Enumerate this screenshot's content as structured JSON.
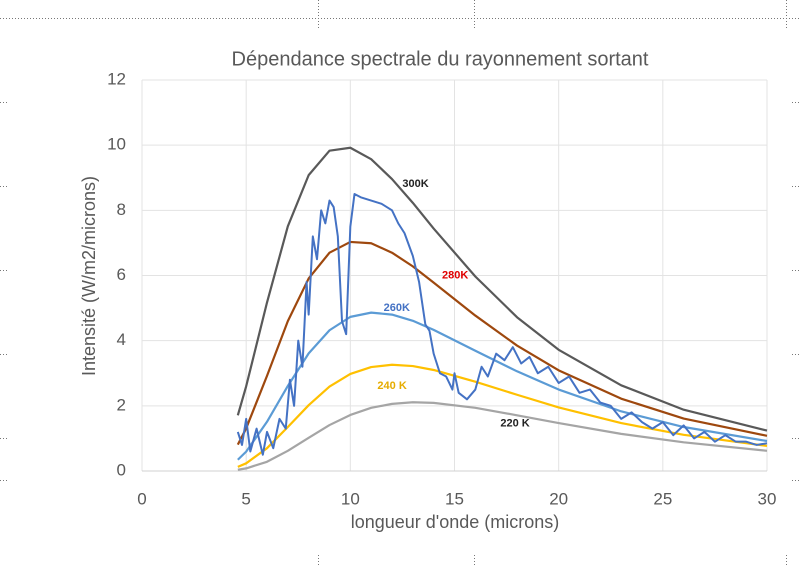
{
  "chart_data": {
    "type": "line",
    "title": "Dépendance spectrale du rayonnement sortant",
    "xlabel": "longueur d'onde (microns)",
    "ylabel": "Intensité (W/m2/microns)",
    "xlim": [
      0,
      30
    ],
    "xticks": [
      0,
      5,
      10,
      15,
      20,
      25,
      30
    ],
    "ylim": [
      0,
      12
    ],
    "yticks": [
      0,
      2,
      4,
      6,
      8,
      10,
      12
    ],
    "grid": true,
    "x": [
      4.6,
      5,
      6,
      7,
      8,
      9,
      10,
      11,
      12,
      13,
      14,
      16,
      18,
      20,
      23,
      26,
      30
    ],
    "series": [
      {
        "name": "300K",
        "color": "#595959",
        "values": [
          1.71,
          2.6,
          5.17,
          7.51,
          9.08,
          9.83,
          9.92,
          9.57,
          8.96,
          8.23,
          7.44,
          5.97,
          4.72,
          3.72,
          2.63,
          1.88,
          1.24
        ]
      },
      {
        "name": "280K",
        "color": "#9e480e",
        "values": [
          0.81,
          1.31,
          2.92,
          4.6,
          5.91,
          6.7,
          7.03,
          6.99,
          6.7,
          6.28,
          5.78,
          4.77,
          3.85,
          3.09,
          2.22,
          1.61,
          1.08
        ]
      },
      {
        "name": "260K",
        "color": "#5b9bd5",
        "values": [
          0.345,
          0.595,
          1.51,
          2.61,
          3.61,
          4.32,
          4.73,
          4.86,
          4.8,
          4.61,
          4.33,
          3.69,
          3.06,
          2.5,
          1.83,
          1.35,
          0.92
        ]
      },
      {
        "name": "240 K",
        "color": "#ffc000",
        "values": [
          0.127,
          0.236,
          0.7,
          1.35,
          2.02,
          2.59,
          2.98,
          3.19,
          3.26,
          3.22,
          3.1,
          2.74,
          2.34,
          1.95,
          1.47,
          1.11,
          0.77
        ]
      },
      {
        "name": "220 K",
        "color": "#a5a5a5",
        "values": [
          0.039,
          0.08,
          0.283,
          0.62,
          1.02,
          1.41,
          1.72,
          1.94,
          2.06,
          2.11,
          2.09,
          1.94,
          1.71,
          1.47,
          1.14,
          0.88,
          0.62
        ]
      },
      {
        "color": "#4472c4",
        "x": [
          4.6,
          4.8,
          5.0,
          5.2,
          5.5,
          5.8,
          6.0,
          6.3,
          6.6,
          6.9,
          7.1,
          7.3,
          7.5,
          7.7,
          7.9,
          8.0,
          8.2,
          8.4,
          8.6,
          8.8,
          9.0,
          9.2,
          9.4,
          9.6,
          9.8,
          10.0,
          10.2,
          10.5,
          11.0,
          11.5,
          12.0,
          12.3,
          12.6,
          13.0,
          13.3,
          13.6,
          13.8,
          14.0,
          14.3,
          14.6,
          14.9,
          15.0,
          15.2,
          15.6,
          16.0,
          16.3,
          16.6,
          17.0,
          17.4,
          17.8,
          18.2,
          18.6,
          19.0,
          19.5,
          20.0,
          20.5,
          21.0,
          21.5,
          22.0,
          22.5,
          23.0,
          23.5,
          24.0,
          24.5,
          25.0,
          25.5,
          26.0,
          26.5,
          27.0,
          27.5,
          28.0,
          28.5,
          29.0,
          29.5,
          30.0
        ],
        "values": [
          1.2,
          0.8,
          1.6,
          0.6,
          1.3,
          0.5,
          1.2,
          0.7,
          1.6,
          1.3,
          2.8,
          2.0,
          4.0,
          3.2,
          5.8,
          4.8,
          7.2,
          6.5,
          8.0,
          7.6,
          8.3,
          8.1,
          7.2,
          4.6,
          4.2,
          7.5,
          8.5,
          8.4,
          8.3,
          8.2,
          8.0,
          7.6,
          7.3,
          6.6,
          5.8,
          4.5,
          4.3,
          3.6,
          3.0,
          2.9,
          2.5,
          3.0,
          2.4,
          2.2,
          2.5,
          3.2,
          2.9,
          3.6,
          3.4,
          3.8,
          3.3,
          3.5,
          3.0,
          3.2,
          2.7,
          2.9,
          2.4,
          2.5,
          2.1,
          2.0,
          1.6,
          1.8,
          1.5,
          1.3,
          1.5,
          1.1,
          1.4,
          1.0,
          1.2,
          0.9,
          1.1,
          0.9,
          0.9,
          0.8,
          0.85
        ]
      }
    ]
  }
}
